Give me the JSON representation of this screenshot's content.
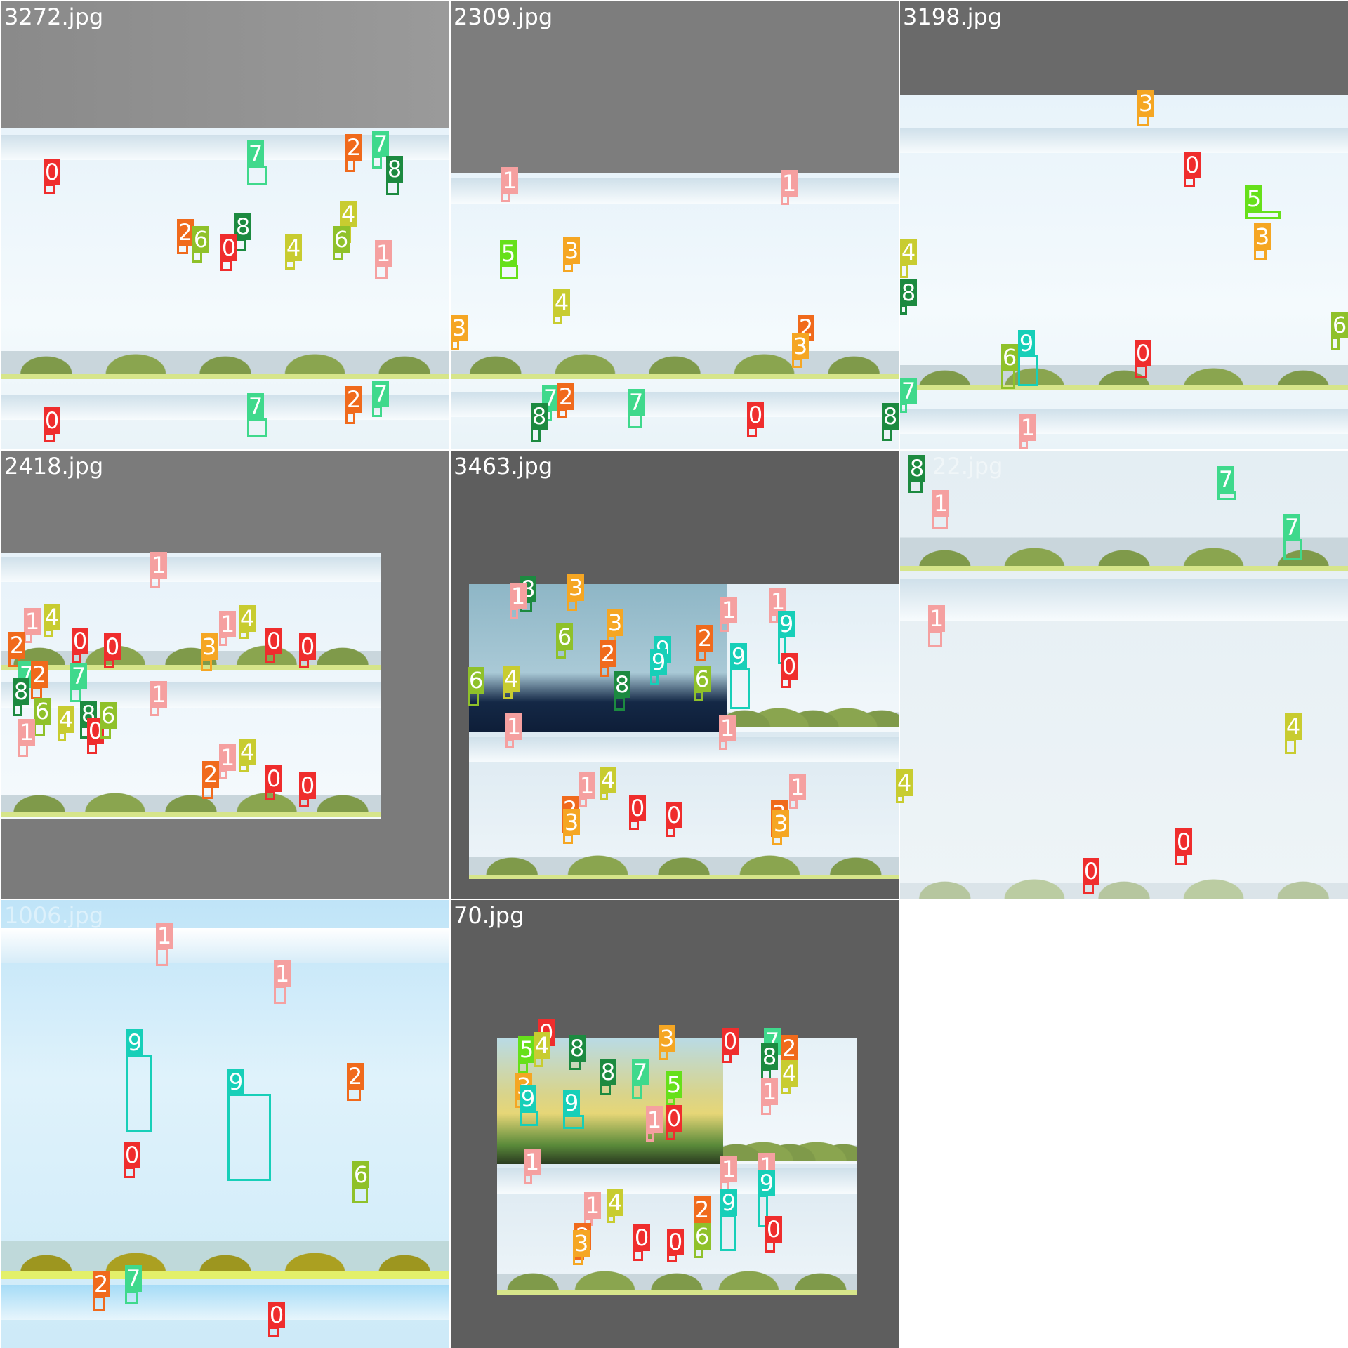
{
  "class_colors": {
    "0": "#ef2d2d",
    "1": "#f5a0a0",
    "2": "#f06a1c",
    "3": "#f5a623",
    "4": "#c8cc30",
    "5": "#66e01a",
    "6": "#8fc12a",
    "7": "#3fd98c",
    "8": "#1c8a40",
    "9": "#17cfb8"
  },
  "tiles": [
    {
      "filename": "3272.jpg",
      "faint": false
    },
    {
      "filename": "2309.jpg",
      "faint": false
    },
    {
      "filename": "3198.jpg",
      "faint": false
    },
    {
      "filename": "2418.jpg",
      "faint": false
    },
    {
      "filename": "3463.jpg",
      "faint": false
    },
    {
      "filename": "22.jpg",
      "faint": true
    },
    {
      "filename": "1006.jpg",
      "faint": true
    },
    {
      "filename": "70.jpg",
      "faint": false
    }
  ]
}
